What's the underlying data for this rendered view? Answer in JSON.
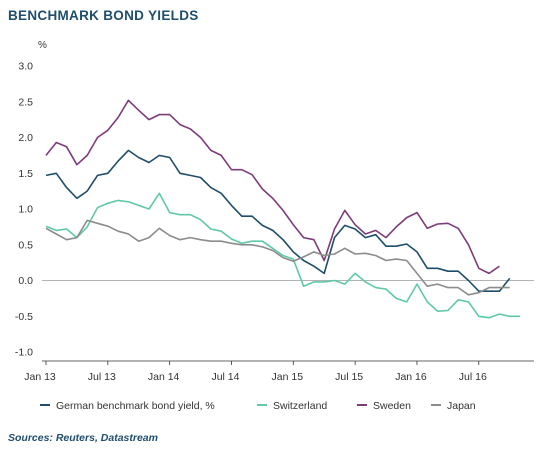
{
  "chart_data": {
    "type": "line",
    "title": "BENCHMARK BOND YIELDS",
    "ylabel": "%",
    "source": "Sources: Reuters, Datastream",
    "ylim": [
      -1.0,
      3.0
    ],
    "yticks": [
      "3.0",
      "2.5",
      "2.0",
      "1.5",
      "1.0",
      "0.5",
      "0.0",
      "-0.5",
      "-1.0"
    ],
    "ytick_values": [
      3.0,
      2.5,
      2.0,
      1.5,
      1.0,
      0.5,
      0.0,
      -0.5,
      -1.0
    ],
    "x_labels": [
      "Jan 13",
      "Jul 13",
      "Jan 14",
      "Jul 14",
      "Jan 15",
      "Jul 15",
      "Jan 16",
      "Jul 16"
    ],
    "x_label_months": [
      0,
      6,
      12,
      18,
      24,
      30,
      36,
      42
    ],
    "grid": false,
    "legend_position": "bottom",
    "series": [
      {
        "name": "German benchmark bond yield, %",
        "color": "#1e4e6b",
        "values": [
          1.47,
          1.5,
          1.3,
          1.15,
          1.25,
          1.47,
          1.5,
          1.67,
          1.82,
          1.72,
          1.65,
          1.75,
          1.72,
          1.5,
          1.47,
          1.44,
          1.3,
          1.22,
          1.05,
          0.9,
          0.9,
          0.77,
          0.7,
          0.57,
          0.4,
          0.28,
          0.2,
          0.1,
          0.6,
          0.77,
          0.72,
          0.6,
          0.64,
          0.48,
          0.48,
          0.51,
          0.4,
          0.17,
          0.17,
          0.13,
          0.13,
          0.0,
          -0.15,
          -0.15,
          -0.15,
          0.03
        ]
      },
      {
        "name": "Switzerland",
        "color": "#5fc9a3",
        "values": [
          0.76,
          0.7,
          0.72,
          0.6,
          0.75,
          1.02,
          1.08,
          1.12,
          1.1,
          1.05,
          1.0,
          1.22,
          0.95,
          0.92,
          0.92,
          0.85,
          0.72,
          0.69,
          0.58,
          0.52,
          0.55,
          0.55,
          0.45,
          0.35,
          0.3,
          -0.08,
          -0.02,
          -0.02,
          0.0,
          -0.05,
          0.1,
          -0.02,
          -0.1,
          -0.12,
          -0.25,
          -0.3,
          -0.05,
          -0.3,
          -0.43,
          -0.42,
          -0.27,
          -0.3,
          -0.5,
          -0.52,
          -0.47,
          -0.5,
          -0.5
        ]
      },
      {
        "name": "Sweden",
        "color": "#7d3b7a",
        "values": [
          1.75,
          1.93,
          1.87,
          1.62,
          1.75,
          2.0,
          2.1,
          2.28,
          2.52,
          2.38,
          2.25,
          2.32,
          2.32,
          2.18,
          2.12,
          2.0,
          1.82,
          1.75,
          1.55,
          1.55,
          1.48,
          1.28,
          1.15,
          0.98,
          0.78,
          0.6,
          0.57,
          0.28,
          0.72,
          0.98,
          0.78,
          0.65,
          0.7,
          0.6,
          0.75,
          0.88,
          0.95,
          0.73,
          0.79,
          0.8,
          0.73,
          0.5,
          0.17,
          0.1,
          0.2
        ]
      },
      {
        "name": "Japan",
        "color": "#8c8c8c",
        "values": [
          0.73,
          0.65,
          0.57,
          0.6,
          0.84,
          0.8,
          0.76,
          0.69,
          0.65,
          0.55,
          0.6,
          0.73,
          0.63,
          0.57,
          0.6,
          0.57,
          0.55,
          0.55,
          0.52,
          0.5,
          0.5,
          0.47,
          0.42,
          0.32,
          0.27,
          0.33,
          0.4,
          0.35,
          0.37,
          0.45,
          0.37,
          0.38,
          0.35,
          0.28,
          0.3,
          0.28,
          0.1,
          -0.08,
          -0.05,
          -0.1,
          -0.1,
          -0.2,
          -0.17,
          -0.1,
          -0.1,
          -0.1
        ]
      }
    ]
  }
}
